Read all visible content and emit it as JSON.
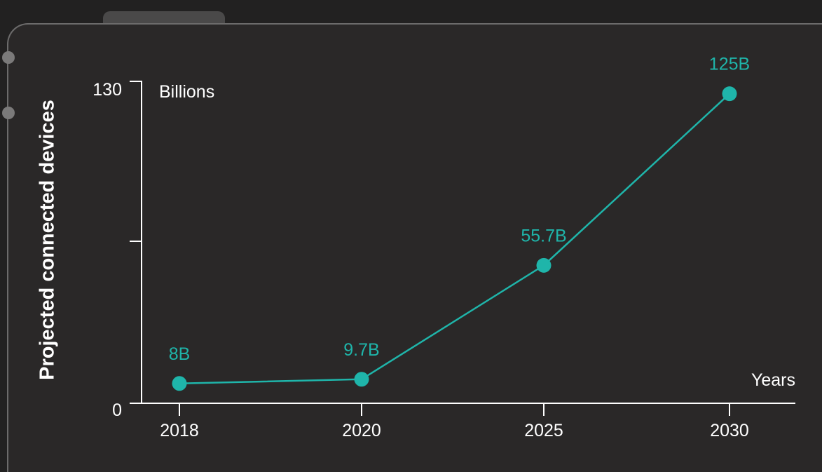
{
  "chart_data": {
    "type": "line",
    "ylabel": "Projected connected devices",
    "y_unit_label": "Billions",
    "xlabel": "Years",
    "ylim": [
      0,
      130
    ],
    "y_ticks": [
      "0",
      "130"
    ],
    "x": [
      "2018",
      "2020",
      "2025",
      "2030"
    ],
    "values": [
      8,
      9.7,
      55.7,
      125
    ],
    "data_labels": [
      "8B",
      "9.7B",
      "55.7B",
      "125B"
    ],
    "line_color": "#1fb5aa",
    "grid": false
  }
}
